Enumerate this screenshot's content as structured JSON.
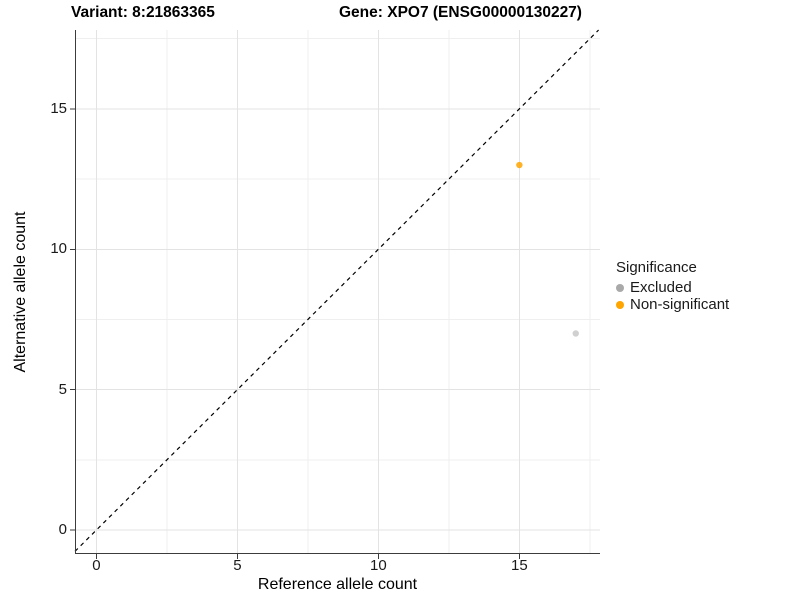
{
  "titles": {
    "variant": "Variant: 8:21863365",
    "gene": "Gene: XPO7 (ENSG00000130227)"
  },
  "axes": {
    "x": {
      "label": "Reference allele count",
      "tick_labels": [
        "0",
        "5",
        "10",
        "15"
      ]
    },
    "y": {
      "label": "Alternative allele count",
      "tick_labels": [
        "0",
        "5",
        "10",
        "15"
      ]
    }
  },
  "legend": {
    "title": "Significance",
    "items": [
      {
        "label": "Excluded",
        "color": "#A9A9A9"
      },
      {
        "label": "Non-significant",
        "color": "#FFA500"
      }
    ]
  },
  "chart_data": {
    "type": "scatter",
    "title": "Variant: 8:21863365 — Gene: XPO7 (ENSG00000130227)",
    "xlabel": "Reference allele count",
    "ylabel": "Alternative allele count",
    "xlim": [
      -0.76,
      17.86
    ],
    "ylim": [
      -0.855,
      17.81
    ],
    "x_ticks": [
      0,
      5,
      10,
      15
    ],
    "y_ticks": [
      0,
      5,
      10,
      15
    ],
    "x_minor_ticks": [
      2.5,
      7.5,
      12.5,
      17.5
    ],
    "y_minor_ticks": [
      2.5,
      7.5,
      12.5,
      17.5
    ],
    "grid": true,
    "legend_position": "right",
    "reference_line": {
      "type": "identity",
      "style": "dashed",
      "color": "#000000"
    },
    "series": [
      {
        "name": "Excluded",
        "color": "#A9A9A9",
        "opacity": 0.55,
        "points": [
          {
            "x": 17,
            "y": 7
          }
        ]
      },
      {
        "name": "Non-significant",
        "color": "#FFA500",
        "opacity": 0.85,
        "points": [
          {
            "x": 15,
            "y": 13
          }
        ]
      }
    ],
    "style": {
      "major_grid_color": "#E3E3E3",
      "minor_grid_color": "#EFEFEF",
      "axis_line_color": "#3c3c3c",
      "point_radius": 3.2
    }
  }
}
